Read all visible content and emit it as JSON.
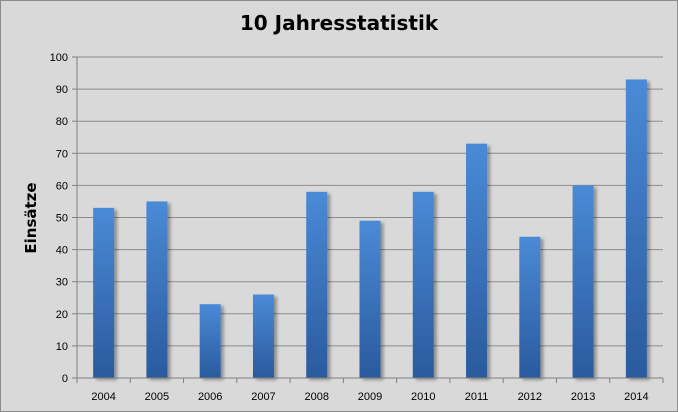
{
  "chart_data": {
    "type": "bar",
    "title": "10 Jahresstatistik",
    "xlabel": "",
    "ylabel": "Einsätze",
    "categories": [
      "2004",
      "2005",
      "2006",
      "2007",
      "2008",
      "2009",
      "2010",
      "2011",
      "2012",
      "2013",
      "2014"
    ],
    "values": [
      53,
      55,
      23,
      26,
      58,
      49,
      58,
      73,
      44,
      60,
      93
    ],
    "ylim": [
      0,
      100
    ],
    "yticks": [
      "0",
      "10",
      "20",
      "30",
      "40",
      "50",
      "60",
      "70",
      "80",
      "90",
      "100"
    ],
    "grid": true,
    "legend": "none",
    "colors": {
      "background": "#d9d9d9",
      "bar_light": "#4a8ad6",
      "bar_dark": "#2a5a9e",
      "grid": "#8c8c8c",
      "axis": "#7f7f7f"
    }
  }
}
